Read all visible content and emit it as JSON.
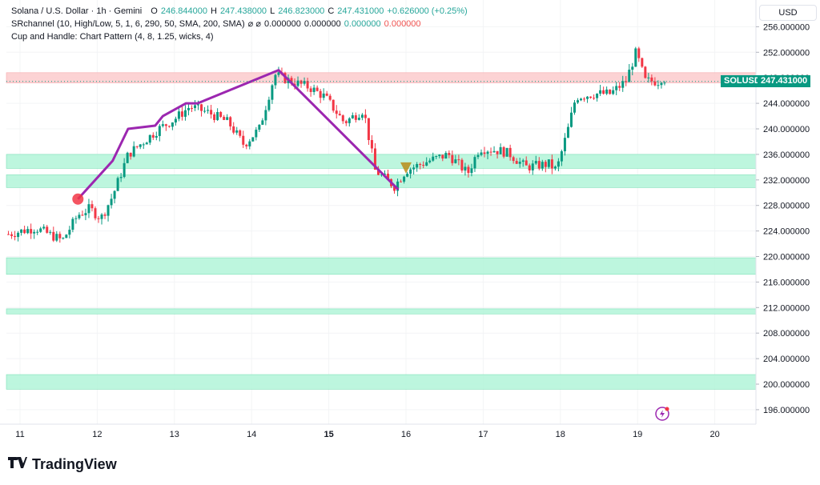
{
  "legend": {
    "symbol_line": "Solana / U.S. Dollar · 1h · Gemini",
    "open_label": "O",
    "open": "246.844000",
    "high_label": "H",
    "high": "247.438000",
    "low_label": "L",
    "low": "246.823000",
    "close_label": "C",
    "close": "247.431000",
    "change": "+0.626000 (+0.25%)",
    "indicator1_name": "SRchannel (10, High/Low, 5, 1, 6, 290, 50, SMA, 200, SMA)",
    "indicator1_sym": "⌀ ⌀",
    "indicator1_vals": [
      "0.000000",
      "0.000000"
    ],
    "indicator1_green": "0.000000",
    "indicator1_red": "0.000000",
    "indicator2_name": "Cup and Handle: Chart Pattern (4, 8, 1.25, wicks, 4)"
  },
  "currency": "USD",
  "last_price_symbol": "SOLUSD",
  "last_price": "247.431000",
  "brand": "TradingView",
  "colors": {
    "up": "#089981",
    "down": "#f23645",
    "pattern": "#9c27b0",
    "zone_green": "#b2f5d8",
    "zone_red": "#fccbcd",
    "dot": "#f23645",
    "handle": "#b8860b"
  },
  "chart_data": {
    "type": "candlestick",
    "title": "Solana / U.S. Dollar · 1h · Gemini",
    "x_ticks": [
      {
        "label": "11",
        "day": 11,
        "bold": false
      },
      {
        "label": "12",
        "day": 12,
        "bold": false
      },
      {
        "label": "13",
        "day": 13,
        "bold": false
      },
      {
        "label": "14",
        "day": 14,
        "bold": false
      },
      {
        "label": "15",
        "day": 15,
        "bold": true
      },
      {
        "label": "16",
        "day": 16,
        "bold": false
      },
      {
        "label": "17",
        "day": 17,
        "bold": false
      },
      {
        "label": "18",
        "day": 18,
        "bold": false
      },
      {
        "label": "19",
        "day": 19,
        "bold": false
      },
      {
        "label": "20",
        "day": 20,
        "bold": false
      }
    ],
    "y_ticks": [
      "256.000000",
      "252.000000",
      "248.000000",
      "244.000000",
      "240.000000",
      "236.000000",
      "232.000000",
      "228.000000",
      "224.000000",
      "220.000000",
      "216.000000",
      "212.000000",
      "208.000000",
      "204.000000",
      "200.000000",
      "196.000000"
    ],
    "ylim": [
      194,
      258
    ],
    "x_range_days": [
      10.8,
      20.5
    ],
    "last_day": 19.35,
    "price_anchors": [
      [
        10.85,
        223.5
      ],
      [
        11.2,
        224.5
      ],
      [
        11.55,
        222.5
      ],
      [
        11.75,
        226.5
      ],
      [
        11.9,
        227.5
      ],
      [
        12.05,
        226.0
      ],
      [
        12.2,
        229.5
      ],
      [
        12.4,
        236.0
      ],
      [
        12.6,
        238.0
      ],
      [
        12.8,
        240.0
      ],
      [
        13.0,
        241.5
      ],
      [
        13.2,
        243.5
      ],
      [
        13.45,
        242.5
      ],
      [
        13.7,
        241.0
      ],
      [
        13.9,
        237.5
      ],
      [
        14.1,
        240.0
      ],
      [
        14.3,
        248.5
      ],
      [
        14.5,
        247.5
      ],
      [
        14.75,
        246.5
      ],
      [
        14.95,
        245.0
      ],
      [
        15.2,
        241.0
      ],
      [
        15.45,
        243.0
      ],
      [
        15.6,
        233.5
      ],
      [
        15.85,
        231.0
      ],
      [
        16.0,
        233.5
      ],
      [
        16.3,
        235.0
      ],
      [
        16.55,
        236.0
      ],
      [
        16.8,
        233.0
      ],
      [
        16.95,
        237.0
      ],
      [
        17.25,
        236.5
      ],
      [
        17.35,
        236.0
      ],
      [
        17.55,
        234.0
      ],
      [
        17.85,
        234.5
      ],
      [
        17.95,
        233.5
      ],
      [
        18.1,
        240.0
      ],
      [
        18.2,
        245.0
      ],
      [
        18.45,
        245.5
      ],
      [
        18.65,
        245.5
      ],
      [
        18.85,
        247.5
      ],
      [
        18.98,
        252.0
      ],
      [
        19.1,
        247.5
      ],
      [
        19.35,
        247.43
      ]
    ],
    "pattern_line": [
      {
        "day": 11.75,
        "price": 229.0
      },
      {
        "day": 12.2,
        "price": 235.0
      },
      {
        "day": 12.4,
        "price": 240.0
      },
      {
        "day": 12.75,
        "price": 240.5
      },
      {
        "day": 12.85,
        "price": 242.0
      },
      {
        "day": 13.15,
        "price": 244.0
      },
      {
        "day": 13.3,
        "price": 244.0
      },
      {
        "day": 14.35,
        "price": 249.2
      },
      {
        "day": 15.9,
        "price": 230.5
      }
    ],
    "pattern_dot": {
      "day": 11.75,
      "price": 229.0
    },
    "handle_marker": {
      "day": 16.0,
      "price": 234.0
    },
    "zones": [
      {
        "low": 247.2,
        "high": 248.8,
        "kind": "resistance"
      },
      {
        "low": 233.8,
        "high": 236.0,
        "kind": "support"
      },
      {
        "low": 230.8,
        "high": 232.8,
        "kind": "support"
      },
      {
        "low": 217.2,
        "high": 219.8,
        "kind": "support"
      },
      {
        "low": 211.0,
        "high": 211.8,
        "kind": "support"
      },
      {
        "low": 199.2,
        "high": 201.5,
        "kind": "support"
      }
    ]
  }
}
